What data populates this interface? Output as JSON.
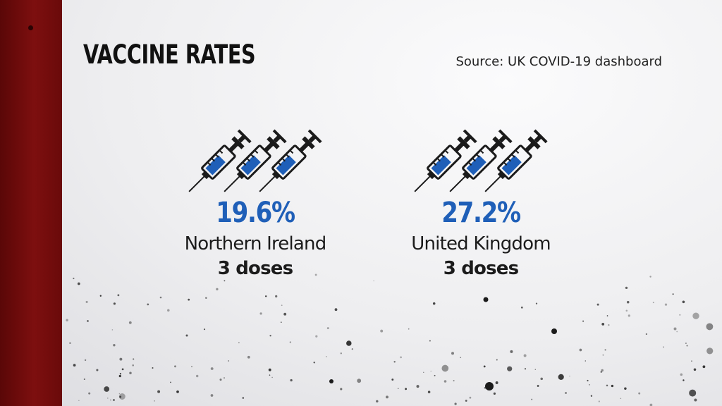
{
  "title": "VACCINE RATES",
  "source": "Source: UK COVID-19 dashboard",
  "colors": {
    "accent_bar": "#7d0f0f",
    "percent": "#1f5fb8",
    "text": "#1b1b1b"
  },
  "stats": [
    {
      "percent": "19.6%",
      "region": "Northern Ireland",
      "doses": "3 doses",
      "icon": "syringe-icon"
    },
    {
      "percent": "27.2%",
      "region": "United Kingdom",
      "doses": "3 doses",
      "icon": "syringe-icon"
    }
  ]
}
